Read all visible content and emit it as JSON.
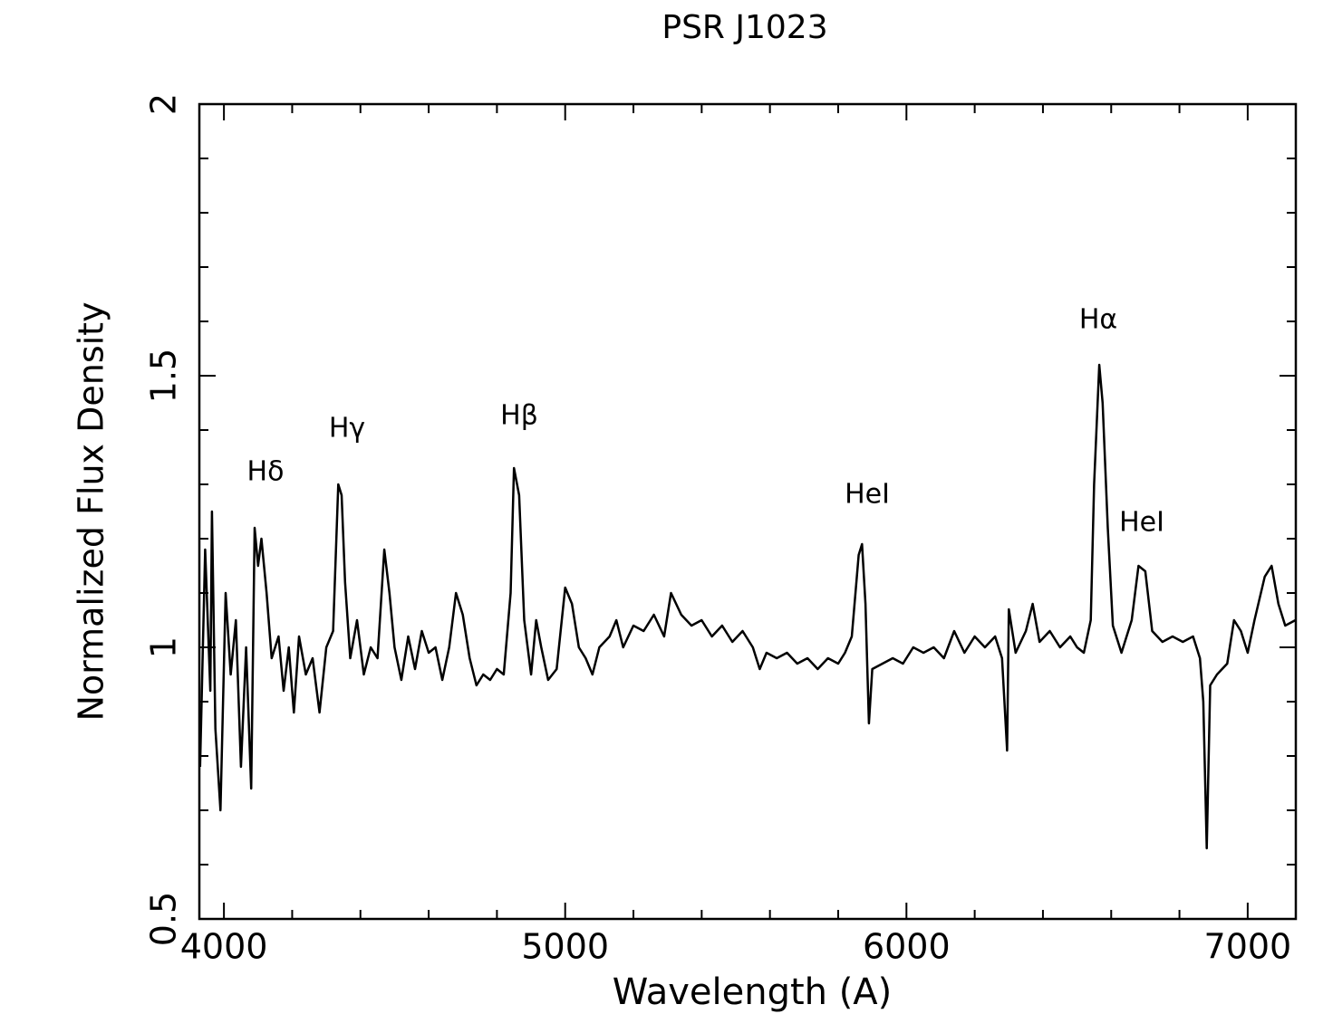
{
  "chart_data": {
    "type": "line",
    "title": "PSR J1023",
    "x_label": "Wavelength (A)",
    "y_label": "Normalized Flux Density",
    "xlim": [
      3928,
      7141
    ],
    "ylim": [
      0.5,
      2
    ],
    "xticks": [
      4000,
      5000,
      6000,
      7000
    ],
    "yticks": [
      0.5,
      1,
      1.5,
      2
    ],
    "xminorticks": [
      4200,
      4400,
      4600,
      4800,
      5200,
      5400,
      5600,
      5800,
      6200,
      6400,
      6600,
      6800
    ],
    "yminorticks": [
      0.6,
      0.7,
      0.8,
      0.9,
      1.1,
      1.2,
      1.3,
      1.4,
      1.6,
      1.7,
      1.8,
      1.9
    ],
    "annotations": [
      "Hδ",
      "Hγ",
      "Hβ",
      "HeI",
      "Hα",
      "HeI"
    ],
    "series": [
      {
        "color": "#000000",
        "x": [
          3930,
          3945,
          3960,
          3965,
          3975,
          3990,
          4005,
          4020,
          4035,
          4050,
          4065,
          4080,
          4090,
          4100,
          4110,
          4125,
          4140,
          4160,
          4175,
          4190,
          4205,
          4220,
          4240,
          4260,
          4280,
          4300,
          4320,
          4335,
          4345,
          4355,
          4370,
          4390,
          4410,
          4430,
          4450,
          4470,
          4485,
          4500,
          4520,
          4540,
          4560,
          4580,
          4600,
          4620,
          4640,
          4660,
          4680,
          4700,
          4720,
          4740,
          4760,
          4780,
          4800,
          4820,
          4840,
          4850,
          4865,
          4880,
          4900,
          4915,
          4930,
          4950,
          4975,
          5000,
          5020,
          5040,
          5060,
          5080,
          5100,
          5130,
          5150,
          5170,
          5200,
          5230,
          5260,
          5290,
          5310,
          5340,
          5370,
          5400,
          5430,
          5460,
          5490,
          5520,
          5550,
          5570,
          5590,
          5620,
          5650,
          5680,
          5710,
          5740,
          5770,
          5800,
          5820,
          5840,
          5860,
          5870,
          5880,
          5890,
          5900,
          5930,
          5960,
          5990,
          6020,
          6050,
          6080,
          6110,
          6140,
          6170,
          6200,
          6230,
          6260,
          6280,
          6295,
          6300,
          6320,
          6350,
          6370,
          6390,
          6420,
          6450,
          6480,
          6500,
          6520,
          6540,
          6550,
          6565,
          6575,
          6590,
          6605,
          6630,
          6660,
          6680,
          6700,
          6720,
          6750,
          6780,
          6810,
          6840,
          6860,
          6870,
          6880,
          6890,
          6910,
          6940,
          6960,
          6980,
          7000,
          7020,
          7050,
          7070,
          7090,
          7110,
          7140
        ],
        "values": [
          0.78,
          1.18,
          0.92,
          1.25,
          0.85,
          0.7,
          1.1,
          0.95,
          1.05,
          0.78,
          1.0,
          0.74,
          1.22,
          1.15,
          1.2,
          1.1,
          0.98,
          1.02,
          0.92,
          1.0,
          0.88,
          1.02,
          0.95,
          0.98,
          0.88,
          1.0,
          1.03,
          1.3,
          1.28,
          1.12,
          0.98,
          1.05,
          0.95,
          1.0,
          0.98,
          1.18,
          1.1,
          1.0,
          0.94,
          1.02,
          0.96,
          1.03,
          0.99,
          1.0,
          0.94,
          1.0,
          1.1,
          1.06,
          0.98,
          0.93,
          0.95,
          0.94,
          0.96,
          0.95,
          1.1,
          1.33,
          1.28,
          1.05,
          0.95,
          1.05,
          1.0,
          0.94,
          0.96,
          1.11,
          1.08,
          1.0,
          0.98,
          0.95,
          1.0,
          1.02,
          1.05,
          1.0,
          1.04,
          1.03,
          1.06,
          1.02,
          1.1,
          1.06,
          1.04,
          1.05,
          1.02,
          1.04,
          1.01,
          1.03,
          1.0,
          0.96,
          0.99,
          0.98,
          0.99,
          0.97,
          0.98,
          0.96,
          0.98,
          0.97,
          0.99,
          1.02,
          1.17,
          1.19,
          1.08,
          0.86,
          0.96,
          0.97,
          0.98,
          0.97,
          1.0,
          0.99,
          1.0,
          0.98,
          1.03,
          0.99,
          1.02,
          1.0,
          1.02,
          0.98,
          0.81,
          1.07,
          0.99,
          1.03,
          1.08,
          1.01,
          1.03,
          1.0,
          1.02,
          1.0,
          0.99,
          1.05,
          1.3,
          1.52,
          1.45,
          1.22,
          1.04,
          0.99,
          1.05,
          1.15,
          1.14,
          1.03,
          1.01,
          1.02,
          1.01,
          1.02,
          0.98,
          0.9,
          0.63,
          0.93,
          0.95,
          0.97,
          1.05,
          1.03,
          0.99,
          1.05,
          1.13,
          1.15,
          1.08,
          1.04,
          1.05
        ]
      }
    ]
  }
}
